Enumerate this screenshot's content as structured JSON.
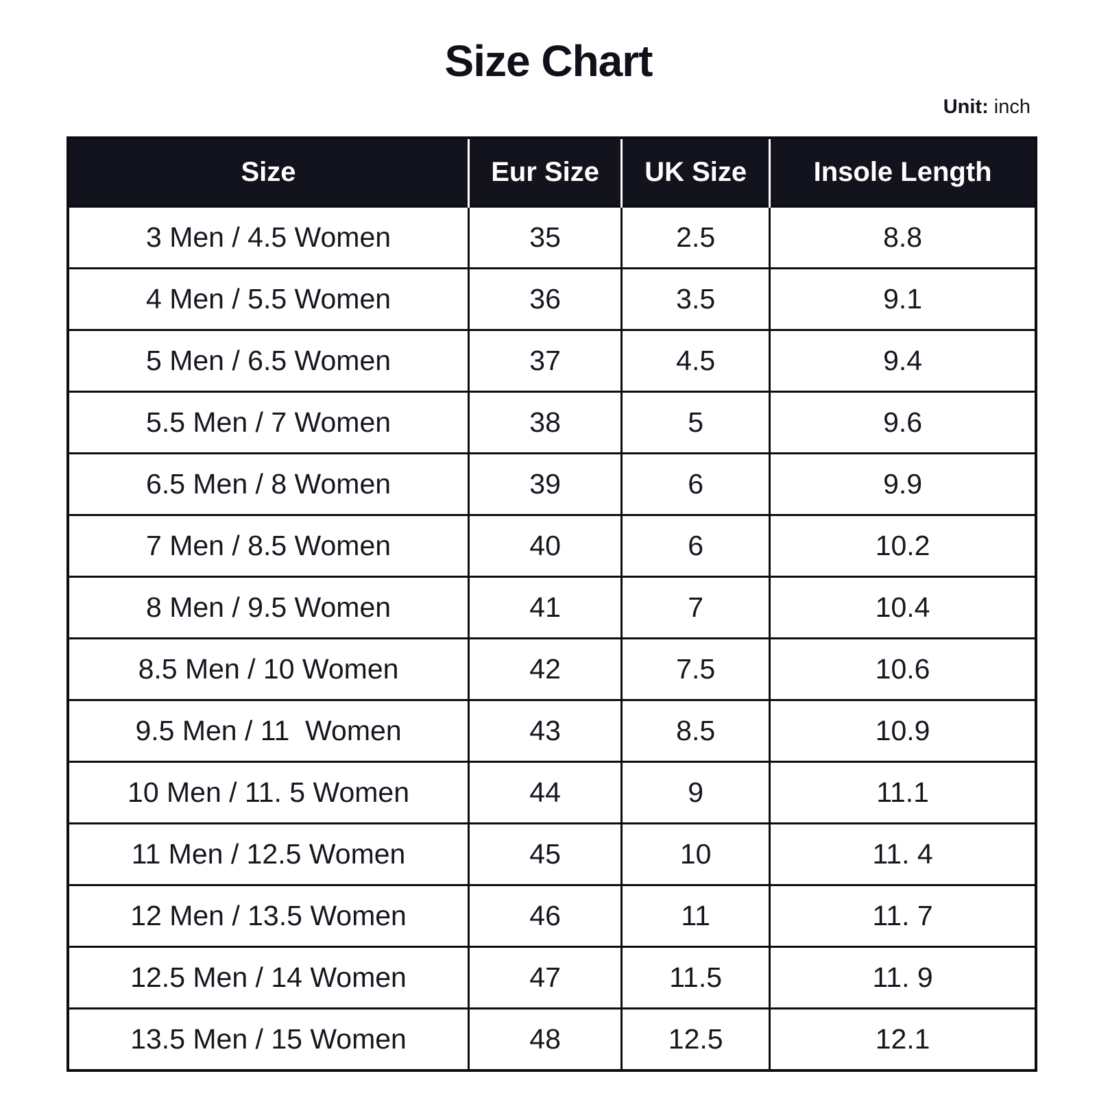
{
  "page": {
    "title": "Size Chart",
    "unit_label": "Unit:",
    "unit_value": "inch"
  },
  "colors": {
    "page_bg": "#ffffff",
    "title_text": "#10101a",
    "header_bg": "#13131d",
    "header_text": "#ffffff",
    "body_text": "#16161f",
    "border": "#0c0c13"
  },
  "chart_data": {
    "type": "table",
    "title": "Size Chart",
    "unit": "inch",
    "columns": [
      "Size",
      "Eur Size",
      "UK Size",
      "Insole Length"
    ],
    "rows": [
      [
        "3 Men / 4.5 Women",
        "35",
        "2.5",
        "8.8"
      ],
      [
        "4 Men / 5.5 Women",
        "36",
        "3.5",
        "9.1"
      ],
      [
        "5 Men / 6.5 Women",
        "37",
        "4.5",
        "9.4"
      ],
      [
        "5.5 Men / 7 Women",
        "38",
        "5",
        "9.6"
      ],
      [
        "6.5 Men / 8 Women",
        "39",
        "6",
        "9.9"
      ],
      [
        "7 Men / 8.5 Women",
        "40",
        "6",
        "10.2"
      ],
      [
        "8 Men / 9.5 Women",
        "41",
        "7",
        "10.4"
      ],
      [
        "8.5 Men / 10 Women",
        "42",
        "7.5",
        "10.6"
      ],
      [
        "9.5 Men / 11  Women",
        "43",
        "8.5",
        "10.9"
      ],
      [
        "10 Men / 11. 5 Women",
        "44",
        "9",
        "11.1"
      ],
      [
        "11 Men / 12.5 Women",
        "45",
        "10",
        "11. 4"
      ],
      [
        "12 Men / 13.5 Women",
        "46",
        "11",
        "11. 7"
      ],
      [
        "12.5 Men / 14 Women",
        "47",
        "11.5",
        "11. 9"
      ],
      [
        "13.5 Men / 15 Women",
        "48",
        "12.5",
        "12.1"
      ]
    ]
  }
}
